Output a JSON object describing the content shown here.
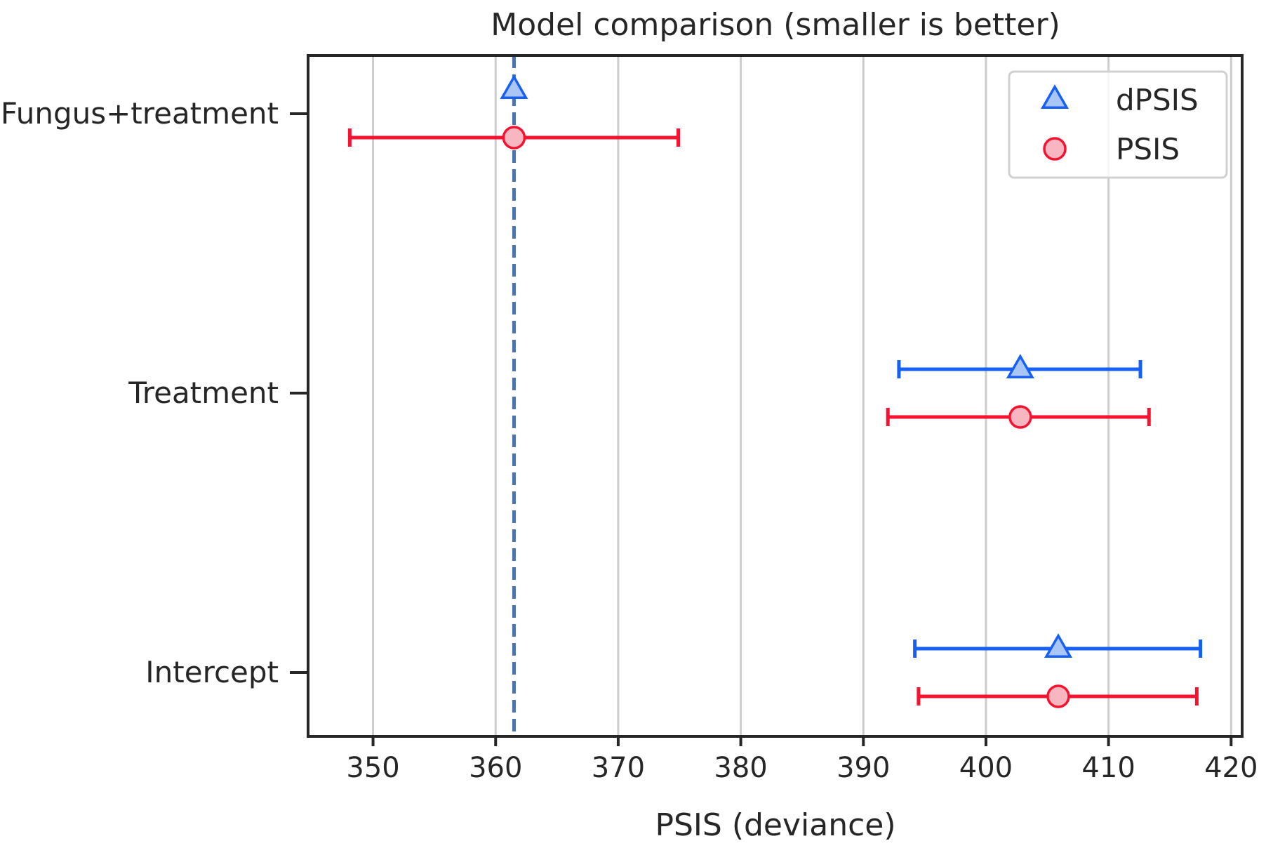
{
  "chart_data": {
    "type": "scatter",
    "title": "Model comparison (smaller is better)",
    "xlabel": "PSIS (deviance)",
    "ylabel": "",
    "xlim": [
      344.7,
      420.9
    ],
    "xticks": [
      350,
      360,
      370,
      380,
      390,
      400,
      410,
      420
    ],
    "xtick_labels": [
      "350",
      "360",
      "370",
      "380",
      "390",
      "400",
      "410",
      "420"
    ],
    "grid": "vertical",
    "legend_position": "top-right",
    "reference_line": {
      "x": 361.5,
      "style": "dashed",
      "color": "#4c72b0"
    },
    "categories": [
      "Fungus+treatment",
      "Treatment",
      "Intercept"
    ],
    "series": [
      {
        "name": "dPSIS",
        "marker": "triangle",
        "color": "#1660f5",
        "fill": "#a9c6f5",
        "points": [
          {
            "category": "Fungus+treatment",
            "x": 361.5,
            "lower": null,
            "upper": null
          },
          {
            "category": "Treatment",
            "x": 402.8,
            "lower": 392.9,
            "upper": 412.6
          },
          {
            "category": "Intercept",
            "x": 405.9,
            "lower": 394.2,
            "upper": 417.5
          }
        ]
      },
      {
        "name": "PSIS",
        "marker": "circle",
        "color": "#f5132f",
        "fill": "#f8b7c0",
        "points": [
          {
            "category": "Fungus+treatment",
            "x": 361.5,
            "lower": 348.1,
            "upper": 374.9
          },
          {
            "category": "Treatment",
            "x": 402.8,
            "lower": 392.0,
            "upper": 413.3
          },
          {
            "category": "Intercept",
            "x": 405.9,
            "lower": 394.5,
            "upper": 417.2
          }
        ]
      }
    ]
  }
}
